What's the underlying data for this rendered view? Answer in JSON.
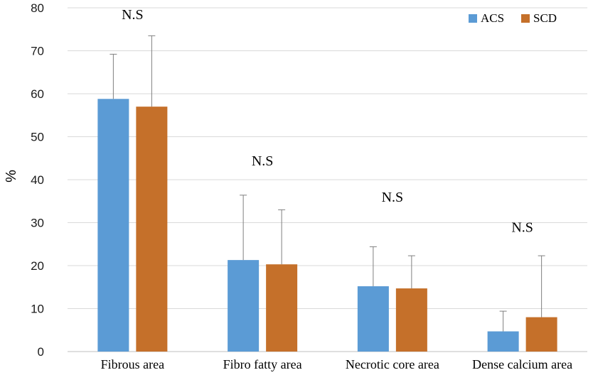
{
  "chart_data": {
    "type": "bar",
    "title": "",
    "xlabel": "",
    "ylabel": "%",
    "ylim": [
      0,
      80
    ],
    "yticks": [
      0,
      10,
      20,
      30,
      40,
      50,
      60,
      70,
      80
    ],
    "grid": true,
    "legend_position": "top-right",
    "categories": [
      "Fibrous area",
      "Fibro fatty area",
      "Necrotic core area",
      "Dense calcium area"
    ],
    "series": [
      {
        "name": "ACS",
        "color": "#5B9BD5",
        "values": [
          58.8,
          21.3,
          15.2,
          4.7
        ],
        "error_upper": [
          69.2,
          36.4,
          24.4,
          9.4
        ]
      },
      {
        "name": "SCD",
        "color": "#C5702A",
        "values": [
          57.0,
          20.3,
          14.7,
          8.0
        ],
        "error_upper": [
          73.5,
          33.0,
          22.3,
          22.3
        ]
      }
    ],
    "annotations": [
      {
        "text": "N.S",
        "category": "Fibrous area",
        "y": 78.5
      },
      {
        "text": "N.S",
        "category": "Fibro fatty area",
        "y": 44.5
      },
      {
        "text": "N.S",
        "category": "Necrotic core area",
        "y": 36.0
      },
      {
        "text": "N.S",
        "category": "Dense calcium area",
        "y": 29.0
      }
    ]
  }
}
